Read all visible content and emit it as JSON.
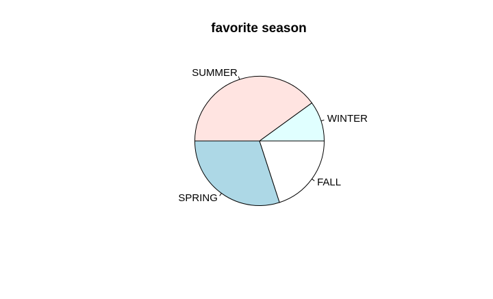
{
  "chart_data": {
    "type": "pie",
    "title": "favorite season",
    "categories": [
      "WINTER",
      "SUMMER",
      "SPRING",
      "FALL"
    ],
    "values": [
      10,
      40,
      30,
      20
    ],
    "colors": [
      "#E0FFFF",
      "#FFE4E1",
      "#ADD8E6",
      "#FFFFFF"
    ],
    "start": "3 o'clock",
    "direction": "counterclockwise",
    "legend": "none"
  }
}
